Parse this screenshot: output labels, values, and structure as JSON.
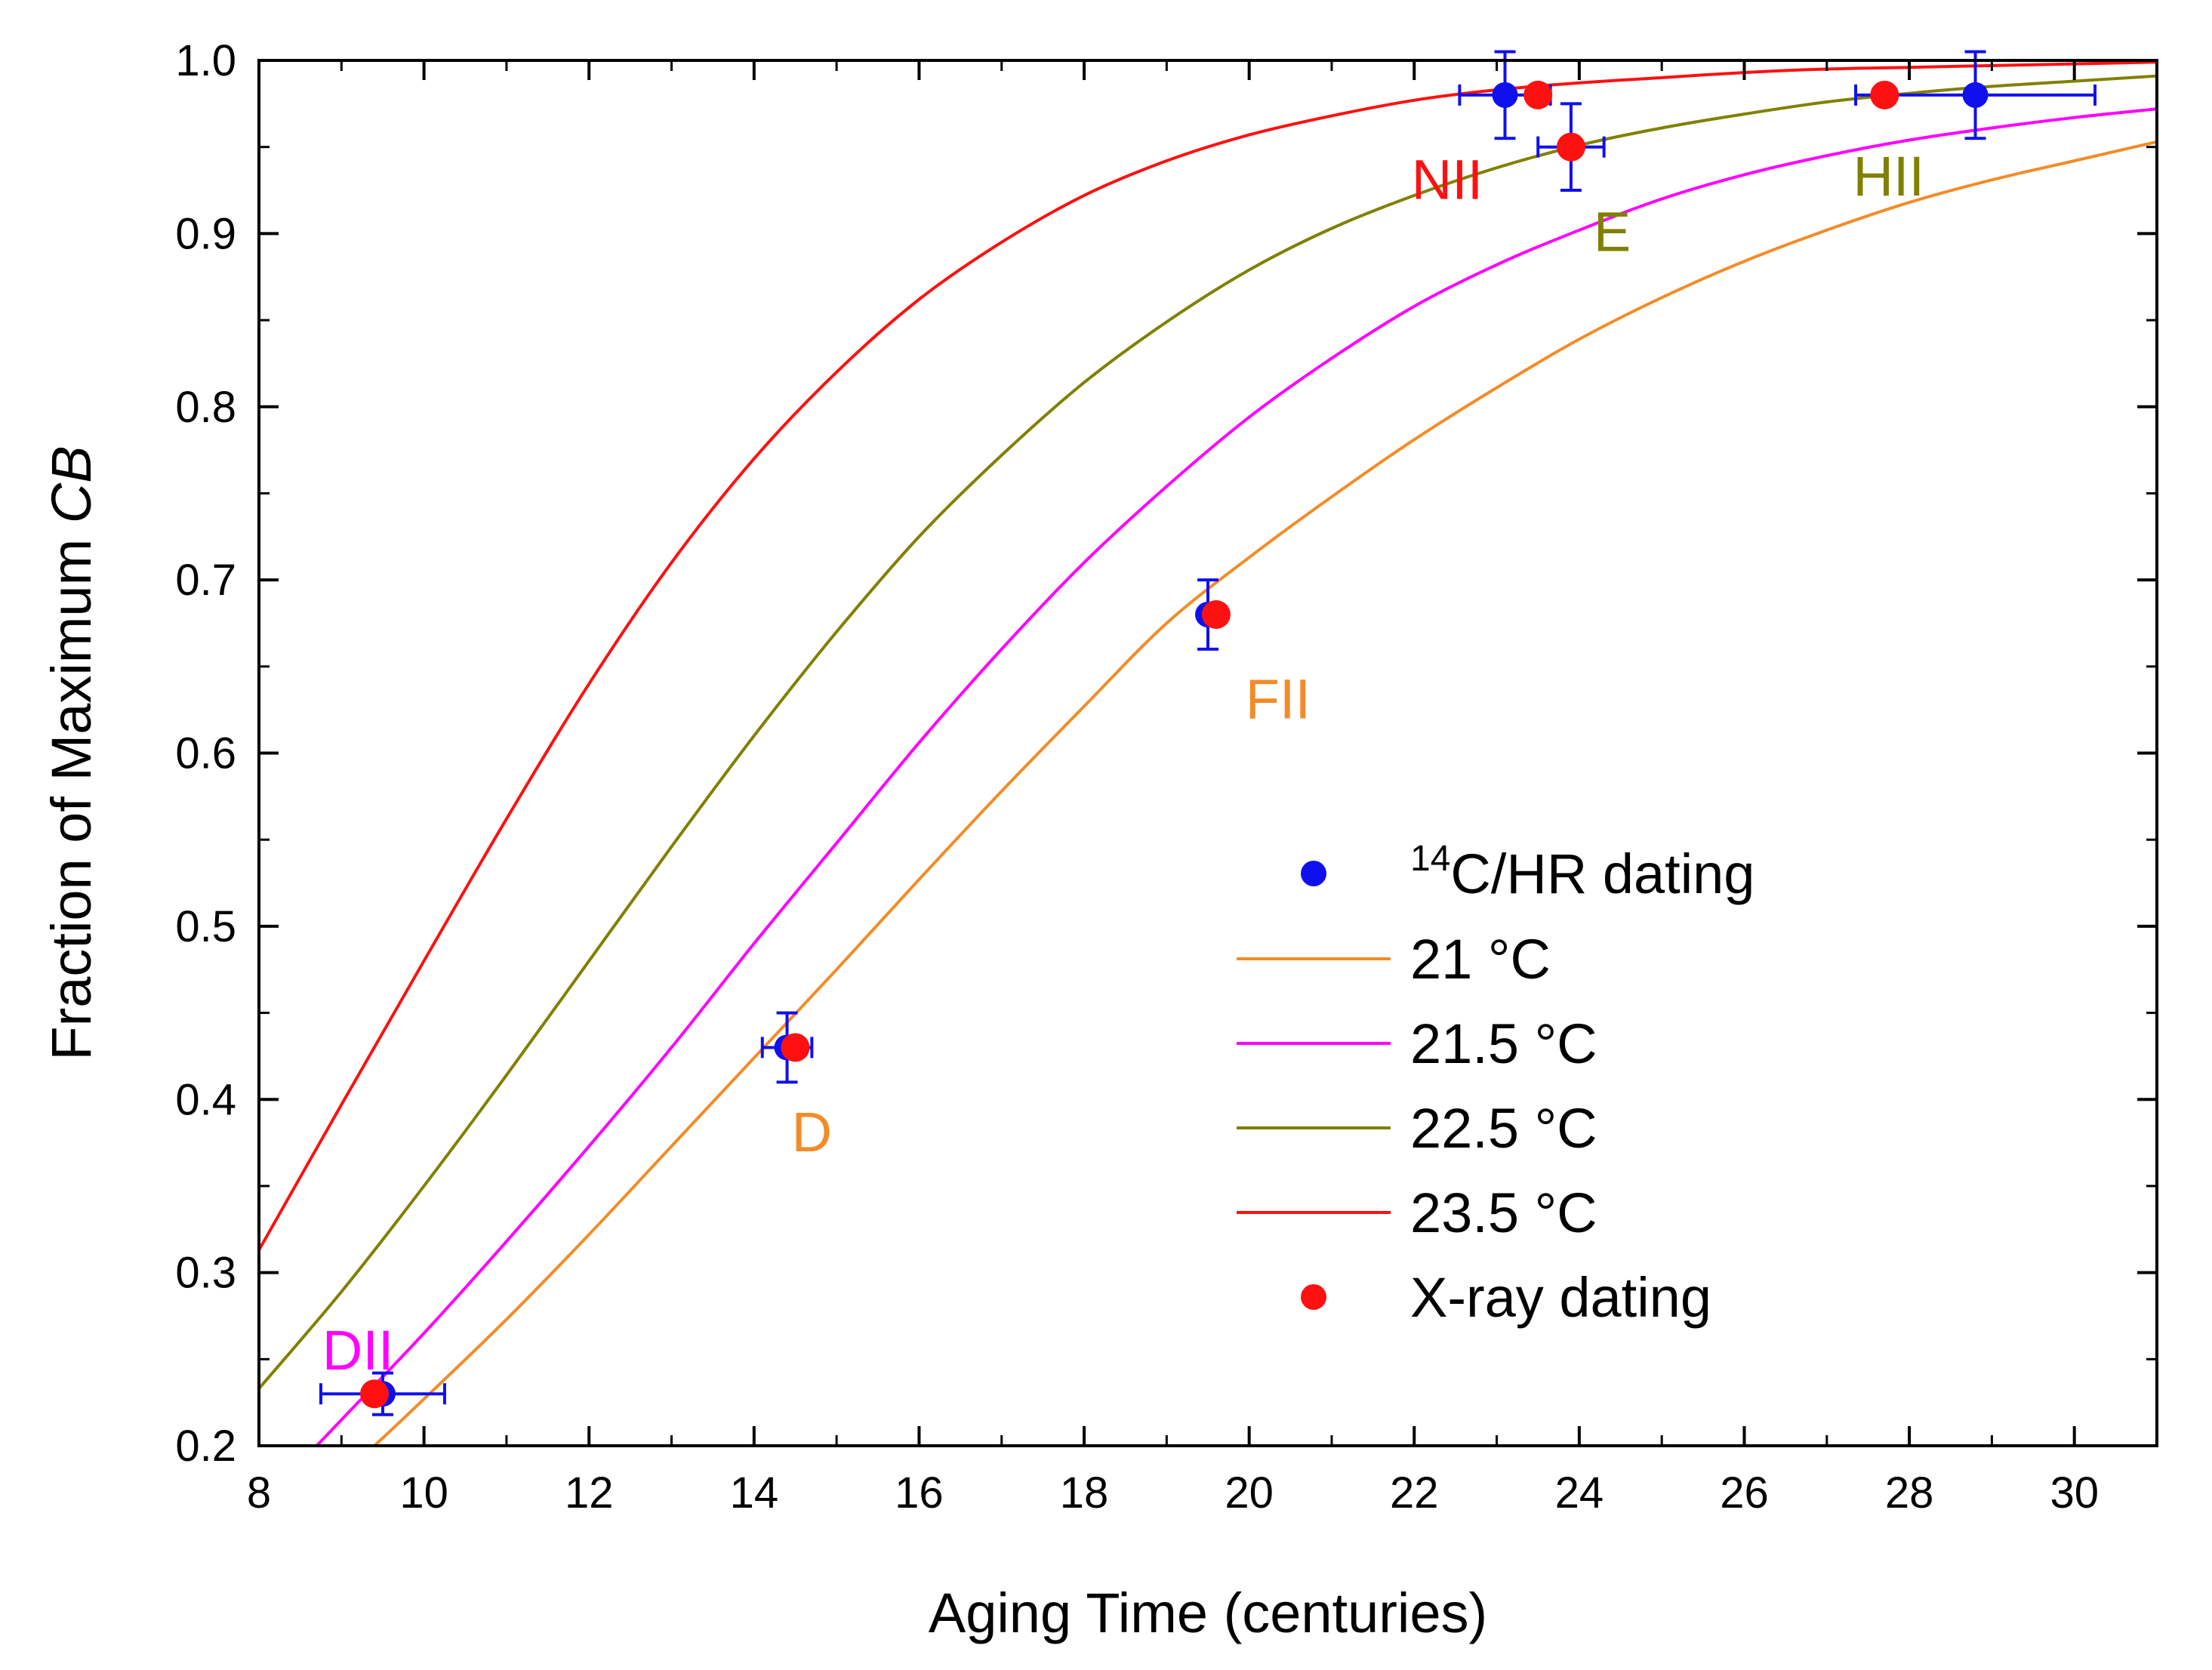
{
  "chart_data": {
    "type": "line",
    "xlabel": "Aging Time (centuries)",
    "ylabel_prefix": "Fraction of Maximum ",
    "ylabel_italic": "CB",
    "xlim": [
      8,
      31
    ],
    "ylim": [
      0.2,
      1.0
    ],
    "xticks": [
      8,
      10,
      12,
      14,
      16,
      18,
      20,
      22,
      24,
      26,
      28,
      30
    ],
    "xtick_labels": [
      "8",
      "10",
      "12",
      "14",
      "16",
      "18",
      "20",
      "22",
      "24",
      "26",
      "28",
      "30"
    ],
    "yticks": [
      0.2,
      0.3,
      0.4,
      0.5,
      0.6,
      0.7,
      0.8,
      0.9,
      1.0
    ],
    "ytick_labels": [
      "0.2",
      "0.3",
      "0.4",
      "0.5",
      "0.6",
      "0.7",
      "0.8",
      "0.9",
      "1.0"
    ],
    "grid": false,
    "legend_position": "center-right",
    "series": [
      {
        "name": "21 °C",
        "color": "#f28c28",
        "x": [
          9.4,
          10,
          11,
          12,
          13,
          14,
          15,
          16,
          17,
          18,
          19,
          20,
          21,
          22,
          23,
          24,
          25,
          26,
          27,
          28,
          29,
          30,
          31
        ],
        "y": [
          0.2,
          0.227,
          0.273,
          0.322,
          0.373,
          0.424,
          0.475,
          0.527,
          0.578,
          0.627,
          0.675,
          0.713,
          0.748,
          0.781,
          0.811,
          0.839,
          0.863,
          0.884,
          0.902,
          0.918,
          0.931,
          0.942,
          0.953
        ]
      },
      {
        "name": "21.5 °C",
        "color": "#ff00ff",
        "x": [
          8.7,
          9,
          10,
          11,
          12,
          13,
          14,
          15,
          16,
          17,
          18,
          19,
          20,
          21,
          22,
          23,
          24,
          25,
          26,
          27,
          28,
          29,
          30,
          31
        ],
        "y": [
          0.2,
          0.215,
          0.265,
          0.318,
          0.373,
          0.43,
          0.49,
          0.548,
          0.606,
          0.66,
          0.71,
          0.754,
          0.794,
          0.828,
          0.858,
          0.882,
          0.902,
          0.92,
          0.934,
          0.945,
          0.954,
          0.961,
          0.967,
          0.972
        ]
      },
      {
        "name": "22.5 °C",
        "color": "#808000",
        "x": [
          8,
          9,
          10,
          11,
          12,
          13,
          14,
          15,
          16,
          17,
          18,
          19,
          20,
          21,
          22,
          23,
          24,
          25,
          26,
          27,
          28,
          29,
          30,
          31
        ],
        "y": [
          0.233,
          0.289,
          0.35,
          0.414,
          0.48,
          0.546,
          0.61,
          0.67,
          0.725,
          0.772,
          0.814,
          0.849,
          0.879,
          0.903,
          0.922,
          0.938,
          0.951,
          0.961,
          0.969,
          0.976,
          0.981,
          0.985,
          0.988,
          0.991
        ]
      },
      {
        "name": "23.5 °C",
        "color": "#ff1010",
        "x": [
          8,
          9,
          10,
          11,
          12,
          13,
          14,
          15,
          16,
          17,
          18,
          19,
          20,
          21,
          22,
          23,
          24,
          25,
          26,
          27,
          28,
          29,
          30,
          31
        ],
        "y": [
          0.313,
          0.397,
          0.48,
          0.562,
          0.64,
          0.71,
          0.77,
          0.82,
          0.862,
          0.895,
          0.922,
          0.942,
          0.957,
          0.968,
          0.977,
          0.983,
          0.987,
          0.99,
          0.993,
          0.995,
          0.996,
          0.997,
          0.998,
          0.999
        ]
      }
    ],
    "c14_points": {
      "name": "14C/HR dating",
      "legend_sup": "14",
      "legend_main": "C/HR dating",
      "color": "#1010ee",
      "points": [
        {
          "x": 9.5,
          "y": 0.23,
          "xerr": 0.75,
          "yerr": 0.012
        },
        {
          "x": 14.4,
          "y": 0.43,
          "xerr": 0.3,
          "yerr": 0.02
        },
        {
          "x": 19.5,
          "y": 0.68,
          "xerr": 0.0,
          "yerr": 0.02
        },
        {
          "x": 23.1,
          "y": 0.98,
          "xerr": 0.55,
          "yerr": 0.025
        },
        {
          "x": 23.9,
          "y": 0.95,
          "xerr": 0.4,
          "yerr": 0.025
        },
        {
          "x": 28.8,
          "y": 0.98,
          "xerr": 1.45,
          "yerr": 0.025
        }
      ]
    },
    "xray_points": {
      "name": "X-ray dating",
      "color": "#ff1010",
      "points": [
        {
          "x": 9.4,
          "y": 0.23
        },
        {
          "x": 14.5,
          "y": 0.43
        },
        {
          "x": 19.6,
          "y": 0.68
        },
        {
          "x": 23.5,
          "y": 0.98
        },
        {
          "x": 23.9,
          "y": 0.95
        },
        {
          "x": 27.7,
          "y": 0.98
        }
      ]
    },
    "sample_labels": [
      {
        "text": "DII",
        "color": "#ff00ff"
      },
      {
        "text": "D",
        "color": "#f28c28"
      },
      {
        "text": "FII",
        "color": "#f28c28"
      },
      {
        "text": "NII",
        "color": "#ff1010"
      },
      {
        "text": "E",
        "color": "#808000"
      },
      {
        "text": "HII",
        "color": "#808000"
      }
    ]
  }
}
